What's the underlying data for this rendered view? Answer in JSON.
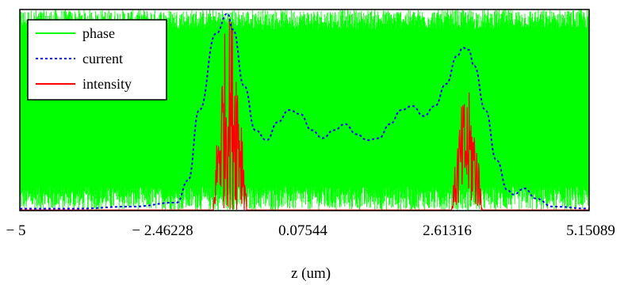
{
  "chart_data": {
    "type": "line",
    "title": "",
    "xlabel": "z (um)",
    "ylabel": "",
    "xlim": [
      -5,
      5.15089
    ],
    "x_ticks": [
      "− 5",
      "− 2.46228",
      "0.07544",
      "2.61316",
      "5.15089"
    ],
    "x_tick_values": [
      -5,
      -2.46228,
      0.07544,
      2.61316,
      5.15089
    ],
    "ylim": [
      0,
      1
    ],
    "grid": false,
    "legend": "top-left",
    "series": [
      {
        "name": "phase",
        "style": "solid",
        "color": "#00ff00",
        "description_values": "noise filling nearly full range",
        "x": [
          -5,
          5.15089
        ],
        "y": [
          0.0,
          1.0
        ]
      },
      {
        "name": "current",
        "style": "dotted",
        "color": "#0000ff",
        "x": [
          -5,
          -4,
          -3,
          -2.2,
          -2.0,
          -1.8,
          -1.5,
          -1.3,
          -1.2,
          -1.0,
          -0.8,
          -0.6,
          -0.4,
          -0.2,
          0.0,
          0.2,
          0.4,
          0.6,
          0.8,
          1.0,
          1.2,
          1.4,
          1.6,
          1.8,
          2.0,
          2.2,
          2.4,
          2.6,
          2.8,
          2.9,
          3.0,
          3.1,
          3.3,
          3.5,
          3.7,
          3.8,
          4.0,
          4.2,
          4.5,
          5.15089
        ],
        "y": [
          0.01,
          0.01,
          0.02,
          0.04,
          0.15,
          0.5,
          0.88,
          0.98,
          0.9,
          0.62,
          0.4,
          0.35,
          0.44,
          0.5,
          0.48,
          0.4,
          0.36,
          0.4,
          0.43,
          0.38,
          0.35,
          0.36,
          0.43,
          0.5,
          0.52,
          0.47,
          0.52,
          0.63,
          0.77,
          0.81,
          0.8,
          0.72,
          0.5,
          0.25,
          0.1,
          0.08,
          0.11,
          0.06,
          0.02,
          0.01
        ]
      },
      {
        "name": "intensity",
        "style": "solid",
        "color": "#ff0000",
        "peak_regions": [
          {
            "x_start": -1.55,
            "x_end": -0.95,
            "peak": 1.0
          },
          {
            "x_start": 2.7,
            "x_end": 3.25,
            "peak": 0.6
          }
        ]
      }
    ]
  }
}
